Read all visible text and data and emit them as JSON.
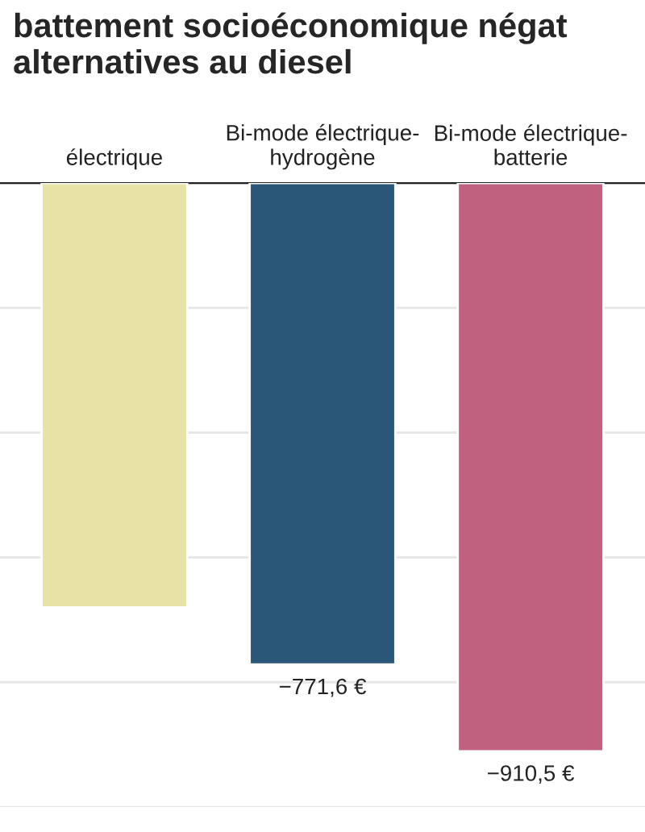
{
  "chart_data": {
    "type": "bar",
    "title": "battement socioéconomique négat\nalternatives au diesel",
    "categories": [
      "électrique",
      "Bi-mode électrique-\nhydrogène",
      "Bi-mode électrique-\nbatterie"
    ],
    "values": [
      -680,
      -771.6,
      -910.5
    ],
    "colors": [
      "#e8e2a6",
      "#2a5677",
      "#c0627f"
    ],
    "value_labels": [
      null,
      "−771,6 €",
      "−910,5 €"
    ],
    "ylim": [
      -1000,
      0
    ],
    "yticks": [
      {
        "value": -1000,
        "label": null
      },
      {
        "value": -800,
        "label": null
      },
      {
        "value": -600,
        "label": null
      },
      {
        "value": -400,
        "label": null
      },
      {
        "value": -200,
        "label": null
      },
      {
        "value": 0,
        "label": null
      }
    ],
    "grid": "y",
    "tick_labels": "x"
  }
}
